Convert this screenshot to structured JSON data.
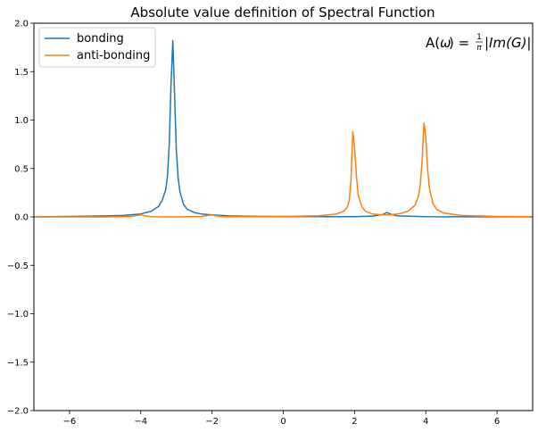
{
  "chart_data": {
    "type": "line",
    "title": "Absolute value definition of Spectral Function",
    "xlabel": "",
    "ylabel": "",
    "xlim": [
      -7,
      7
    ],
    "ylim": [
      -2.0,
      2.0
    ],
    "xticks": [
      -6,
      -4,
      -2,
      0,
      2,
      4,
      6
    ],
    "xtick_labels": [
      "−6",
      "−4",
      "−2",
      "0",
      "2",
      "4",
      "6"
    ],
    "yticks": [
      -2.0,
      -1.5,
      -1.0,
      -0.5,
      0.0,
      0.5,
      1.0,
      1.5,
      2.0
    ],
    "ytick_labels": [
      "−2.0",
      "−1.5",
      "−1.0",
      "−0.5",
      "0.0",
      "0.5",
      "1.0",
      "1.5",
      "2.0"
    ],
    "grid": false,
    "legend_position": "top-left",
    "annotation": {
      "prefix": "A(",
      "omega": "ω",
      "middle": ") = ",
      "frac_num": "1",
      "frac_den": "π",
      "suffix": "|Im(G)|"
    },
    "series": [
      {
        "name": "bonding",
        "color": "#1f77b4",
        "x": [
          -7,
          -6,
          -5,
          -4.5,
          -4,
          -3.7,
          -3.5,
          -3.4,
          -3.3,
          -3.25,
          -3.2,
          -3.15,
          -3.1,
          -3.05,
          -3.0,
          -2.95,
          -2.9,
          -2.8,
          -2.7,
          -2.5,
          -2.3,
          -2.0,
          -1.5,
          -1,
          0,
          1,
          2,
          2.5,
          2.8,
          2.9,
          3.0,
          3.2,
          4,
          5,
          6,
          7
        ],
        "y": [
          0.0,
          0.005,
          0.01,
          0.015,
          0.03,
          0.06,
          0.11,
          0.17,
          0.28,
          0.42,
          0.75,
          1.38,
          1.82,
          1.25,
          0.68,
          0.4,
          0.26,
          0.13,
          0.08,
          0.045,
          0.03,
          0.02,
          0.01,
          0.007,
          0.004,
          0.003,
          0.003,
          0.008,
          0.025,
          0.045,
          0.03,
          0.01,
          0.002,
          0.001,
          0.001,
          0.0
        ]
      },
      {
        "name": "anti-bonding",
        "color": "#ff7f0e",
        "x": [
          -7,
          -6,
          -5,
          -4.3,
          -4.1,
          -4.0,
          -3.9,
          -3.7,
          -3,
          -2.3,
          -2.1,
          -2.0,
          -1.9,
          -1.7,
          -1,
          0,
          1,
          1.5,
          1.7,
          1.8,
          1.85,
          1.9,
          1.95,
          2.0,
          2.05,
          2.1,
          2.2,
          2.3,
          2.5,
          2.8,
          3.0,
          3.3,
          3.5,
          3.7,
          3.8,
          3.85,
          3.9,
          3.95,
          4.0,
          4.05,
          4.1,
          4.2,
          4.3,
          4.5,
          5,
          6,
          7
        ],
        "y": [
          0.0,
          0.0,
          0.0,
          0.005,
          0.015,
          0.02,
          0.012,
          0.002,
          0.0,
          0.005,
          0.015,
          0.02,
          0.012,
          0.003,
          0.003,
          0.005,
          0.012,
          0.03,
          0.06,
          0.1,
          0.17,
          0.38,
          0.88,
          0.72,
          0.43,
          0.23,
          0.11,
          0.06,
          0.03,
          0.02,
          0.022,
          0.035,
          0.06,
          0.12,
          0.22,
          0.34,
          0.6,
          0.97,
          0.83,
          0.5,
          0.3,
          0.14,
          0.08,
          0.04,
          0.015,
          0.005,
          0.002
        ]
      }
    ]
  }
}
